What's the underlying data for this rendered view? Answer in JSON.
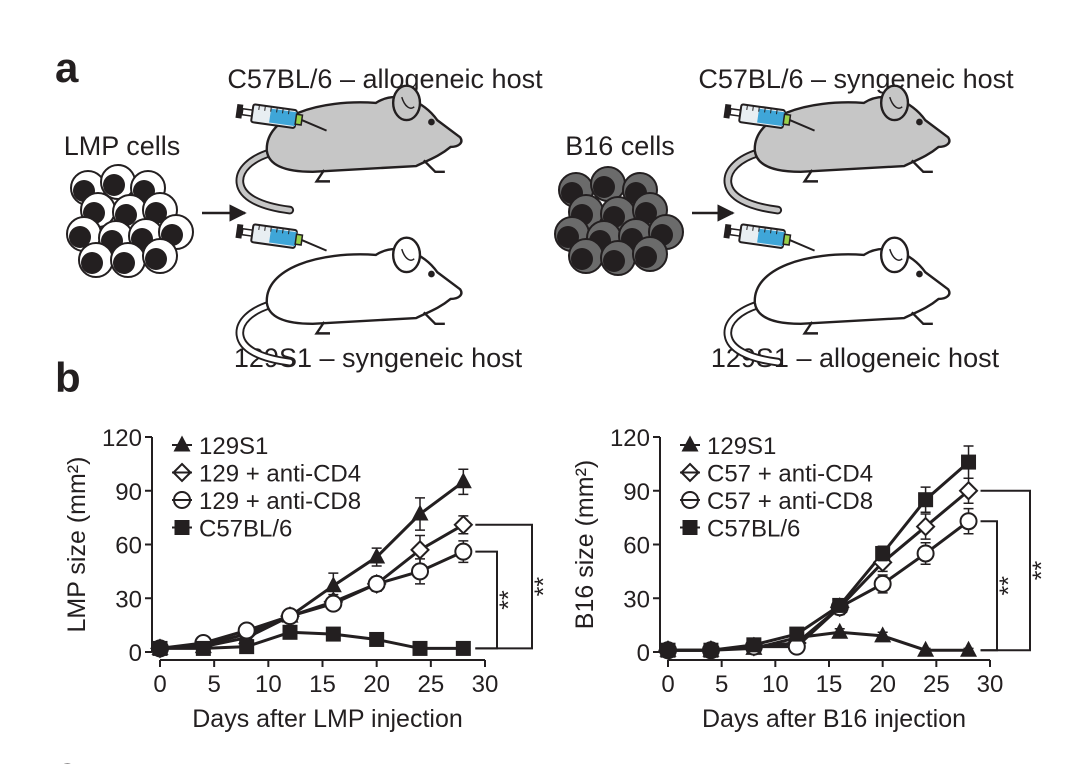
{
  "panel_a": {
    "label": "a",
    "left": {
      "cells": "LMP cells",
      "top_host": "C57BL/6 – allogeneic host",
      "bottom_host": "129S1 – syngeneic host"
    },
    "right": {
      "cells": "B16 cells",
      "top_host": "C57BL/6 – syngeneic host",
      "bottom_host": "129S1 – allogeneic host"
    }
  },
  "panel_b": {
    "label": "b"
  },
  "panel_c": {
    "label": "c"
  },
  "chart_data": [
    {
      "type": "line",
      "xlabel": "Days after LMP injection",
      "ylabel": "LMP size (mm²)",
      "x": [
        0,
        4,
        8,
        12,
        16,
        20,
        24,
        28
      ],
      "xlim": [
        0,
        30
      ],
      "xticks": [
        0,
        5,
        10,
        15,
        20,
        25,
        30
      ],
      "ylim": [
        0,
        120
      ],
      "yticks": [
        0,
        30,
        60,
        90,
        120
      ],
      "legend": "upper left",
      "annotations": [
        "**",
        "**"
      ],
      "series": [
        {
          "name": "129S1",
          "color": "#231f20",
          "marker": "triangle",
          "values": [
            2,
            3,
            8,
            20,
            37,
            53,
            77,
            95
          ],
          "errors": [
            1,
            1,
            2,
            3,
            7,
            5,
            9,
            7
          ]
        },
        {
          "name": "129 + anti-CD4",
          "color": "#231f20",
          "marker": "diamond",
          "values": [
            2,
            4,
            10,
            20,
            28,
            38,
            57,
            71
          ],
          "errors": [
            1,
            1,
            2,
            3,
            4,
            4,
            8,
            5
          ]
        },
        {
          "name": "129 + anti-CD8",
          "color": "#231f20",
          "marker": "circle",
          "values": [
            2,
            5,
            12,
            20,
            27,
            38,
            45,
            56
          ],
          "errors": [
            1,
            1,
            2,
            3,
            3,
            4,
            7,
            6
          ]
        },
        {
          "name": "C57BL/6",
          "color": "#231f20",
          "marker": "square",
          "values": [
            2,
            2,
            3,
            11,
            10,
            7,
            2,
            2
          ],
          "errors": [
            1,
            1,
            1,
            2,
            2,
            1,
            1,
            1
          ]
        }
      ]
    },
    {
      "type": "line",
      "xlabel": "Days after B16 injection",
      "ylabel": "B16 size (mm²)",
      "x": [
        0,
        4,
        8,
        12,
        16,
        20,
        24,
        28
      ],
      "xlim": [
        0,
        30
      ],
      "xticks": [
        0,
        5,
        10,
        15,
        20,
        25,
        30
      ],
      "ylim": [
        0,
        120
      ],
      "yticks": [
        0,
        30,
        60,
        90,
        120
      ],
      "legend": "upper left",
      "annotations": [
        "**",
        "**"
      ],
      "series": [
        {
          "name": "129S1",
          "color": "#231f20",
          "marker": "triangle",
          "values": [
            1,
            1,
            2,
            8,
            11,
            9,
            1,
            1
          ],
          "errors": [
            1,
            1,
            1,
            2,
            2,
            2,
            1,
            1
          ]
        },
        {
          "name": "C57 + anti-CD4",
          "color": "#231f20",
          "marker": "diamond",
          "values": [
            1,
            1,
            3,
            5,
            25,
            50,
            70,
            90
          ],
          "errors": [
            1,
            1,
            1,
            2,
            4,
            5,
            7,
            7
          ]
        },
        {
          "name": "C57 + anti-CD8",
          "color": "#231f20",
          "marker": "circle",
          "values": [
            1,
            1,
            3,
            3,
            25,
            38,
            55,
            73
          ],
          "errors": [
            1,
            1,
            1,
            2,
            4,
            5,
            6,
            7
          ]
        },
        {
          "name": "C57BL/6",
          "color": "#231f20",
          "marker": "square",
          "values": [
            1,
            1,
            4,
            10,
            26,
            55,
            85,
            106
          ],
          "errors": [
            1,
            1,
            1,
            2,
            3,
            4,
            7,
            9
          ]
        }
      ]
    }
  ]
}
